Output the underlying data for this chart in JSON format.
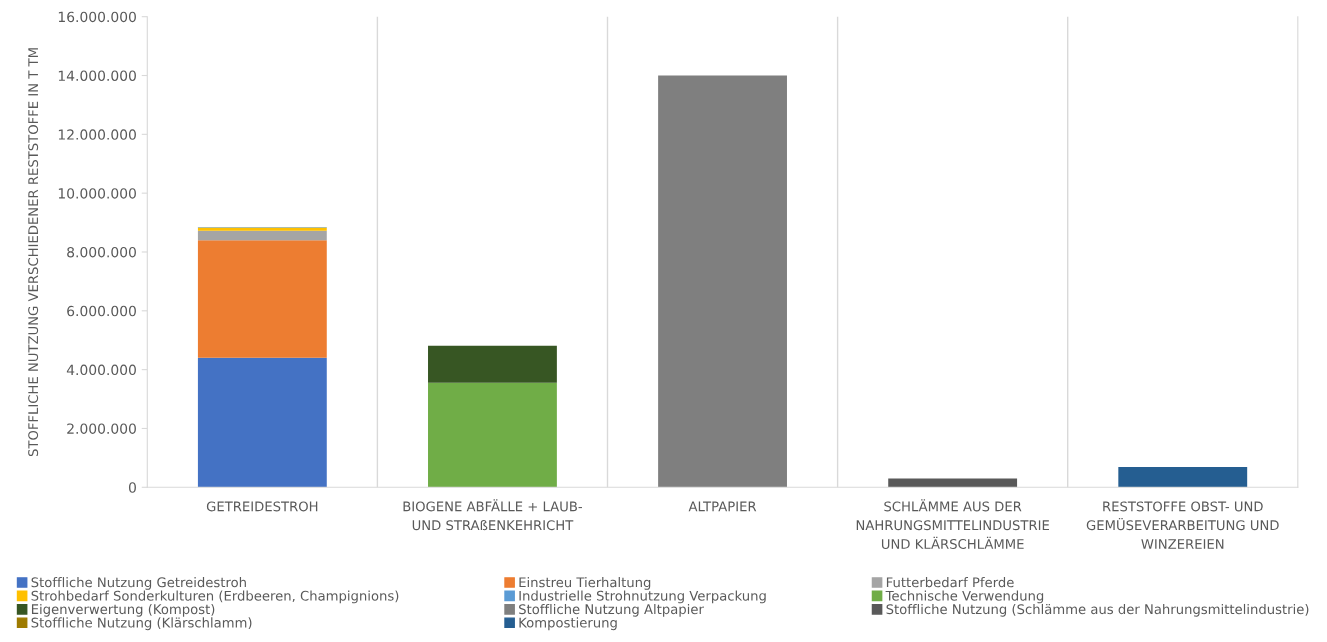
{
  "chart_data": {
    "type": "bar",
    "stacked": true,
    "ylabel": "STOFFLICHE NUTZUNG VERSCHIEDENER RESTSTOFFE IN T TM",
    "categories": [
      "GETREIDESTROH",
      "BIOGENE ABFÄLLE + LAUB-\nUND STRAßENKEHRICHT",
      "ALTPAPIER",
      "SCHLÄMME AUS DER\nNAHRUNGSMITTELINDUSTRIE\nUND KLÄRSCHLÄMME",
      "RESTSTOFFE OBST- UND\nGEMÜSEVERARBEITUNG UND\nWINZEREIEN"
    ],
    "series": [
      {
        "name": "Stoffliche Nutzung Getreidestroh",
        "color": "#4472c4",
        "values": [
          4400000,
          null,
          null,
          null,
          null
        ]
      },
      {
        "name": "Einstreu Tierhaltung",
        "color": "#ed7d31",
        "values": [
          4000000,
          null,
          null,
          null,
          null
        ]
      },
      {
        "name": "Futterbedarf Pferde",
        "color": "#a5a5a5",
        "values": [
          320000,
          null,
          null,
          null,
          null
        ]
      },
      {
        "name": "Strohbedarf Sonderkulturen (Erdbeeren, Champignions)",
        "color": "#ffc000",
        "values": [
          110000,
          null,
          null,
          null,
          null
        ]
      },
      {
        "name": "Industrielle Strohnutzung Verpackung",
        "color": "#5b9bd5",
        "values": [
          20000,
          null,
          null,
          null,
          null
        ]
      },
      {
        "name": "Technische Verwendung",
        "color": "#70ad47",
        "values": [
          null,
          3550000,
          null,
          null,
          null
        ]
      },
      {
        "name": "Eigenverwertung (Kompost)",
        "color": "#375623",
        "values": [
          null,
          1260000,
          null,
          null,
          null
        ]
      },
      {
        "name": "Stoffliche Nutzung Altpapier",
        "color": "#7f7f7f",
        "values": [
          null,
          null,
          14000000,
          null,
          null
        ]
      },
      {
        "name": "Stoffliche Nutzung (Schlämme aus der Nahrungsmittelindustrie)",
        "color": "#595959",
        "values": [
          null,
          null,
          null,
          300000,
          null
        ]
      },
      {
        "name": "Stoffliche Nutzung (Klärschlamm)",
        "color": "#9e7b00",
        "values": [
          null,
          null,
          null,
          null,
          null
        ]
      },
      {
        "name": "Kompostierung",
        "color": "#255e91",
        "values": [
          null,
          null,
          null,
          null,
          690000
        ]
      }
    ],
    "ylim": [
      0,
      16000000
    ],
    "yticks": [
      {
        "value": 0,
        "label": "0"
      },
      {
        "value": 2000000,
        "label": "2.000.000"
      },
      {
        "value": 4000000,
        "label": "4.000.000"
      },
      {
        "value": 6000000,
        "label": "6.000.000"
      },
      {
        "value": 8000000,
        "label": "8.000.000"
      },
      {
        "value": 10000000,
        "label": "10.000.000"
      },
      {
        "value": 12000000,
        "label": "12.000.000"
      },
      {
        "value": 14000000,
        "label": "14.000.000"
      },
      {
        "value": 16000000,
        "label": "16.000.000"
      }
    ],
    "grid": "x",
    "legend": "bottom"
  }
}
